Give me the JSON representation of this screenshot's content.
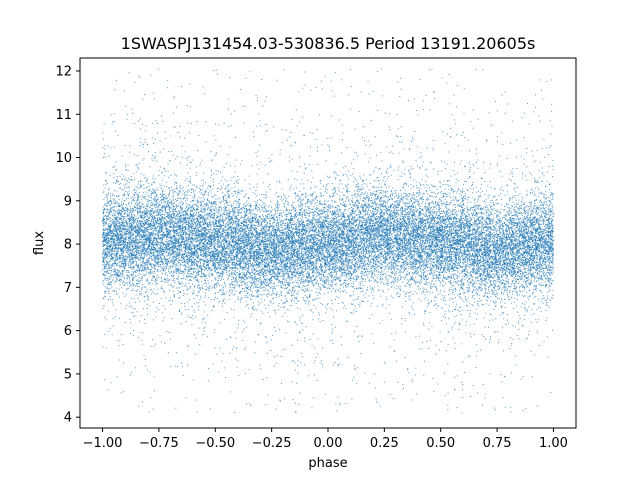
{
  "chart_data": {
    "type": "scatter",
    "title": "1SWASPJ131454.03-530836.5 Period 13191.20605s",
    "xlabel": "phase",
    "ylabel": "flux",
    "xlim": [
      -1.1,
      1.1
    ],
    "ylim": [
      3.75,
      12.3
    ],
    "xticks": [
      -1.0,
      -0.75,
      -0.5,
      -0.25,
      0.0,
      0.25,
      0.5,
      0.75,
      1.0
    ],
    "xtick_labels": [
      "−1.00",
      "−0.75",
      "−0.50",
      "−0.25",
      "0.00",
      "0.25",
      "0.50",
      "0.75",
      "1.00"
    ],
    "yticks": [
      4,
      5,
      6,
      7,
      8,
      9,
      10,
      11,
      12
    ],
    "ytick_labels": [
      "4",
      "5",
      "6",
      "7",
      "8",
      "9",
      "10",
      "11",
      "12"
    ],
    "grid": false,
    "legend": "none",
    "marker_color": "#1f77b4",
    "series": [
      {
        "x_range": [
          -1.0,
          1.0
        ],
        "y_range": [
          4.1,
          12.05
        ],
        "profile": {
          "phase": [
            -1.0,
            -0.75,
            -0.5,
            -0.25,
            0.0,
            0.25,
            0.5,
            0.75,
            1.0
          ],
          "median_flux": [
            8.05,
            8.2,
            8.05,
            7.85,
            8.0,
            8.2,
            8.05,
            7.85,
            8.05
          ],
          "core_halfwidth": [
            0.55,
            0.55,
            0.55,
            0.55,
            0.55,
            0.55,
            0.55,
            0.55,
            0.55
          ]
        }
      }
    ]
  }
}
